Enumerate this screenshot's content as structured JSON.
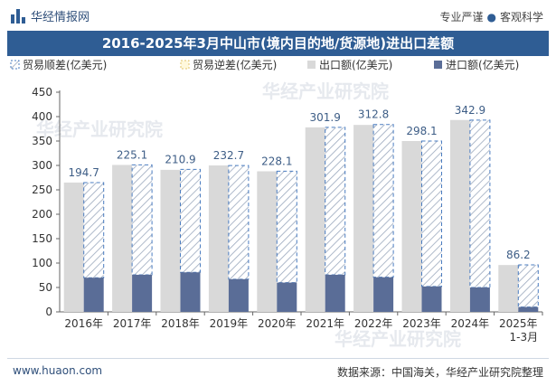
{
  "header": {
    "brand": "华经情报网",
    "slogan_left": "专业严谨",
    "slogan_right": "客观科学"
  },
  "chart_title": "2016-2025年3月中山市(境内目的地/货源地)进出口差额",
  "footer": {
    "url": "www.huaon.com",
    "source": "数据来源：中国海关，华经产业研究院整理"
  },
  "watermark": "华经产业研究院",
  "colors": {
    "export": "#d9d9d9",
    "import": "#5a6d97",
    "surplus_stroke": "#4a7cc0",
    "label": "#3d5d86",
    "title_bg": "#2f5d94"
  },
  "chart_data": {
    "type": "bar",
    "categories": [
      "2016年",
      "2017年",
      "2018年",
      "2019年",
      "2020年",
      "2021年",
      "2022年",
      "2023年",
      "2024年",
      "2025年\n1-3月"
    ],
    "series": [
      {
        "name": "贸易顺差(亿美元)",
        "values": [
          194.7,
          225.1,
          210.9,
          232.7,
          228.1,
          301.9,
          312.8,
          298.1,
          342.9,
          86.2
        ]
      },
      {
        "name": "贸易逆差(亿美元)",
        "values": [
          0,
          0,
          0,
          0,
          0,
          0,
          0,
          0,
          0,
          0
        ]
      },
      {
        "name": "出口额(亿美元)",
        "values": [
          265,
          301,
          291,
          300,
          288,
          378,
          383,
          350,
          393,
          96
        ]
      },
      {
        "name": "进口额(亿美元)",
        "values": [
          70,
          76,
          81,
          67,
          60,
          76,
          71,
          52,
          50,
          10
        ]
      }
    ],
    "ylim": [
      0,
      450
    ],
    "yticks": [
      0,
      50,
      100,
      150,
      200,
      250,
      300,
      350,
      400,
      450
    ],
    "legend_position": "top",
    "grid": false
  }
}
